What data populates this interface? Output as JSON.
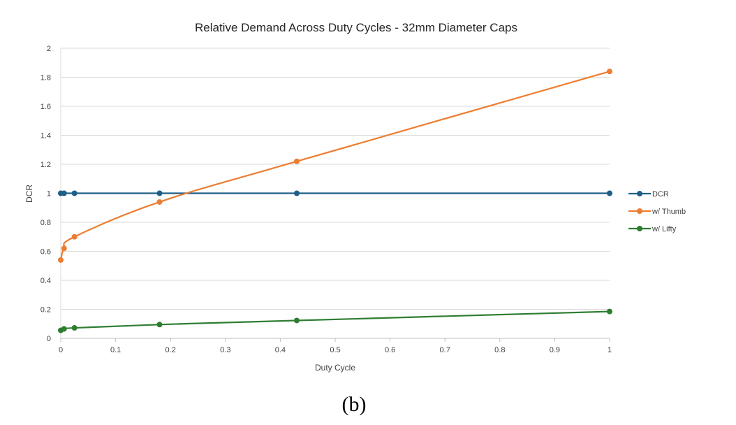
{
  "chart_data": {
    "type": "line",
    "title": "Relative Demand Across Duty Cycles - 32mm Diameter Caps",
    "xlabel": "Duty Cycle",
    "ylabel": "DCR",
    "xlim": [
      0,
      1
    ],
    "ylim": [
      0,
      2
    ],
    "x_ticks": [
      0,
      0.1,
      0.2,
      0.3,
      0.4,
      0.5,
      0.6,
      0.7,
      0.8,
      0.9,
      1
    ],
    "x_tick_labels": [
      "0",
      "0.1",
      "0.2",
      "0.3",
      "0.4",
      "0.5",
      "0.6",
      "0.7",
      "0.8",
      "0.9",
      "1"
    ],
    "y_ticks": [
      0,
      0.2,
      0.4,
      0.6,
      0.8,
      1,
      1.2,
      1.4,
      1.6,
      1.8,
      2
    ],
    "y_tick_labels": [
      "0",
      "0.2",
      "0.4",
      "0.6",
      "0.8",
      "1",
      "1.2",
      "1.4",
      "1.6",
      "1.8",
      "2"
    ],
    "grid": "horizontal",
    "legend_position": "right",
    "series": [
      {
        "name": "DCR",
        "color": "#1f5f87",
        "x": [
          0,
          0.006,
          0.025,
          0.18,
          0.43,
          1
        ],
        "y": [
          1,
          1,
          1,
          1,
          1,
          1
        ]
      },
      {
        "name": "w/ Thumb",
        "color": "#ed7d31",
        "x": [
          0,
          0.006,
          0.025,
          0.18,
          0.43,
          1
        ],
        "y": [
          0.54,
          0.62,
          0.7,
          0.94,
          1.22,
          1.84
        ]
      },
      {
        "name": "w/ Lifty",
        "color": "#2e7d32",
        "x": [
          0,
          0.006,
          0.025,
          0.18,
          0.43,
          1
        ],
        "y": [
          0.055,
          0.065,
          0.072,
          0.095,
          0.123,
          0.185
        ]
      }
    ]
  },
  "caption": "(b)"
}
